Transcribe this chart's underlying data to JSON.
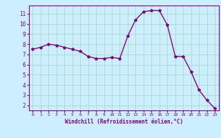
{
  "x": [
    0,
    1,
    2,
    3,
    4,
    5,
    6,
    7,
    8,
    9,
    10,
    11,
    12,
    13,
    14,
    15,
    16,
    17,
    18,
    19,
    20,
    21,
    22,
    23
  ],
  "y": [
    7.5,
    7.7,
    8.0,
    7.9,
    7.7,
    7.5,
    7.3,
    6.8,
    6.6,
    6.6,
    6.7,
    6.6,
    8.8,
    10.4,
    11.2,
    11.3,
    11.3,
    9.9,
    6.8,
    6.8,
    5.3,
    3.5,
    2.5,
    1.7
  ],
  "line_color": "#800080",
  "marker": "*",
  "marker_size": 3,
  "bg_color": "#cceeff",
  "grid_color": "#aaddcc",
  "xlabel": "Windchill (Refroidissement éolien,°C)",
  "xlim": [
    -0.5,
    23.5
  ],
  "ylim": [
    1.5,
    11.8
  ],
  "yticks": [
    2,
    3,
    4,
    5,
    6,
    7,
    8,
    9,
    10,
    11
  ],
  "xticks": [
    0,
    1,
    2,
    3,
    4,
    5,
    6,
    7,
    8,
    9,
    10,
    11,
    12,
    13,
    14,
    15,
    16,
    17,
    18,
    19,
    20,
    21,
    22,
    23
  ],
  "tick_color": "#800080",
  "label_color": "#800080",
  "spine_color": "#800080"
}
